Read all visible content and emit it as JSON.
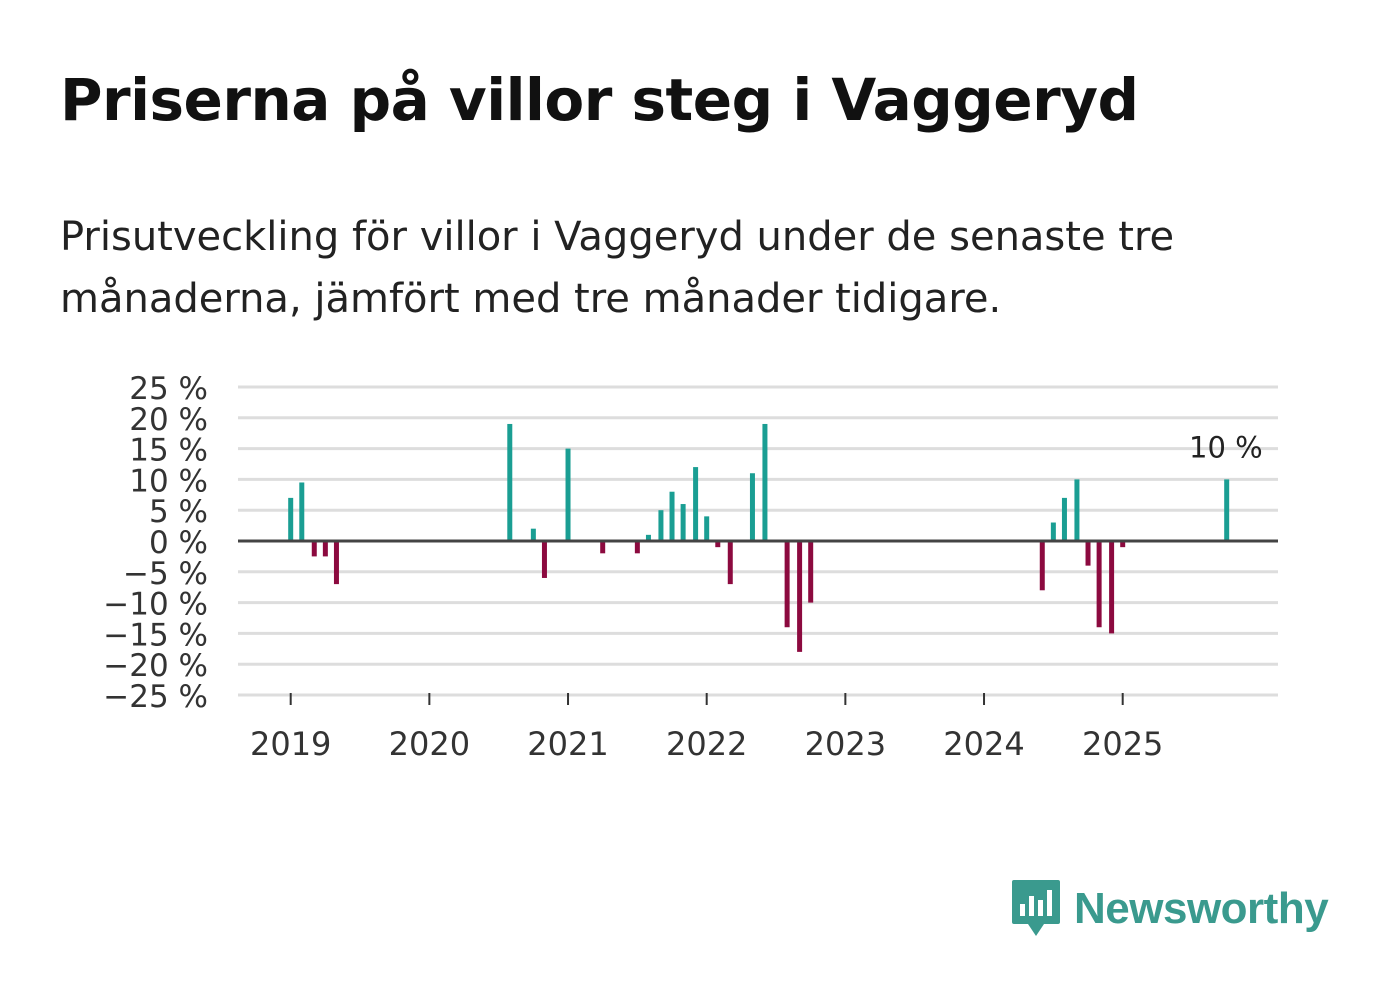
{
  "header": {
    "title": "Priserna på villor steg i Vaggeryd",
    "subtitle": "Prisutveckling för villor i Vaggeryd under de senaste tre månaderna, jämfört med tre månader tidigare."
  },
  "brand": {
    "name": "Newsworthy"
  },
  "colors": {
    "positive": "#1a9e93",
    "negative": "#8c0a3f",
    "grid": "#dddddd",
    "axis": "#444444",
    "brand": "#3a9a8e"
  },
  "chart_data": {
    "type": "bar",
    "title": "Priserna på villor steg i Vaggeryd",
    "ylabel": "",
    "xlabel": "",
    "ylim": [
      -25,
      25
    ],
    "y_ticks": [
      25,
      20,
      15,
      10,
      5,
      0,
      -5,
      -10,
      -15,
      -20,
      -25
    ],
    "y_tick_labels": [
      "25 %",
      "20 %",
      "15 %",
      "10 %",
      "5 %",
      "0 %",
      "−5 %",
      "−10 %",
      "−15 %",
      "−20 %",
      "−25 %"
    ],
    "x_ticks": [
      2019,
      2020,
      2021,
      2022,
      2023,
      2024,
      2025
    ],
    "x_tick_labels": [
      "2019",
      "2020",
      "2021",
      "2022",
      "2023",
      "2024",
      "2025"
    ],
    "x_range": [
      2018.62,
      2026.12
    ],
    "annotation": {
      "x": 2025.75,
      "value": 10,
      "text": "10 %"
    },
    "series": [
      {
        "name": "Prisutveckling",
        "points": [
          {
            "x": 2019.0,
            "value": 7
          },
          {
            "x": 2019.08,
            "value": 9.5
          },
          {
            "x": 2019.17,
            "value": -2.5
          },
          {
            "x": 2019.25,
            "value": -2.5
          },
          {
            "x": 2019.33,
            "value": -7
          },
          {
            "x": 2020.58,
            "value": 19
          },
          {
            "x": 2020.75,
            "value": 2
          },
          {
            "x": 2020.83,
            "value": -6
          },
          {
            "x": 2021.0,
            "value": 15
          },
          {
            "x": 2021.25,
            "value": -2
          },
          {
            "x": 2021.5,
            "value": -2
          },
          {
            "x": 2021.58,
            "value": 1
          },
          {
            "x": 2021.67,
            "value": 5
          },
          {
            "x": 2021.75,
            "value": 8
          },
          {
            "x": 2021.83,
            "value": 6
          },
          {
            "x": 2021.92,
            "value": 12
          },
          {
            "x": 2022.0,
            "value": 4
          },
          {
            "x": 2022.08,
            "value": -1
          },
          {
            "x": 2022.17,
            "value": -7
          },
          {
            "x": 2022.33,
            "value": 11
          },
          {
            "x": 2022.42,
            "value": 19
          },
          {
            "x": 2022.58,
            "value": -14
          },
          {
            "x": 2022.67,
            "value": -18
          },
          {
            "x": 2022.75,
            "value": -10
          },
          {
            "x": 2024.42,
            "value": -8
          },
          {
            "x": 2024.5,
            "value": 3
          },
          {
            "x": 2024.58,
            "value": 7
          },
          {
            "x": 2024.67,
            "value": 10
          },
          {
            "x": 2024.75,
            "value": -4
          },
          {
            "x": 2024.83,
            "value": -14
          },
          {
            "x": 2024.92,
            "value": -15
          },
          {
            "x": 2025.0,
            "value": -1
          },
          {
            "x": 2025.75,
            "value": 10
          }
        ]
      }
    ]
  }
}
